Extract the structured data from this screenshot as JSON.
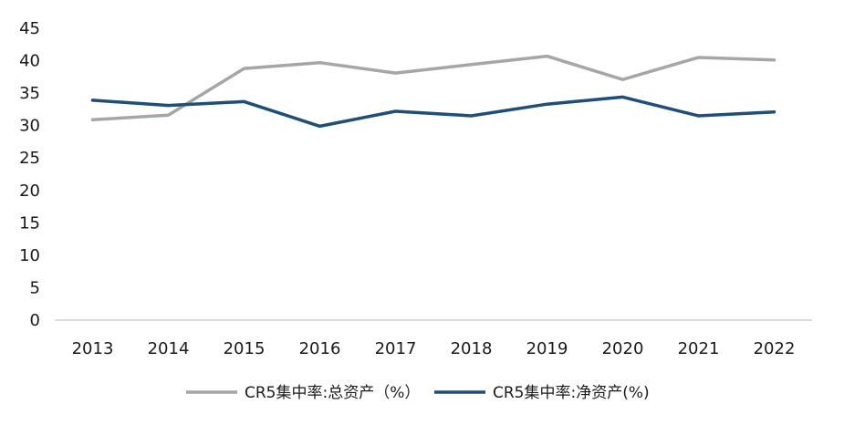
{
  "chart_data": {
    "type": "line",
    "categories": [
      "2013",
      "2014",
      "2015",
      "2016",
      "2017",
      "2018",
      "2019",
      "2020",
      "2021",
      "2022"
    ],
    "ylim": [
      0,
      45
    ],
    "yticks": [
      "0",
      "5",
      "10",
      "15",
      "20",
      "25",
      "30",
      "35",
      "40",
      "45"
    ],
    "grid": false,
    "legend_position": "bottom",
    "series": [
      {
        "name": "CR5集中率:总资产（%）",
        "color": "#a6a6a6",
        "values": [
          30.9,
          31.6,
          38.8,
          39.7,
          38.1,
          39.4,
          40.7,
          37.1,
          40.5,
          40.1
        ]
      },
      {
        "name": "CR5集中率:净资产(%)",
        "color": "#1f4e79",
        "values": [
          33.9,
          33.1,
          33.7,
          29.9,
          32.2,
          31.5,
          33.3,
          34.4,
          31.5,
          32.1
        ]
      }
    ]
  }
}
